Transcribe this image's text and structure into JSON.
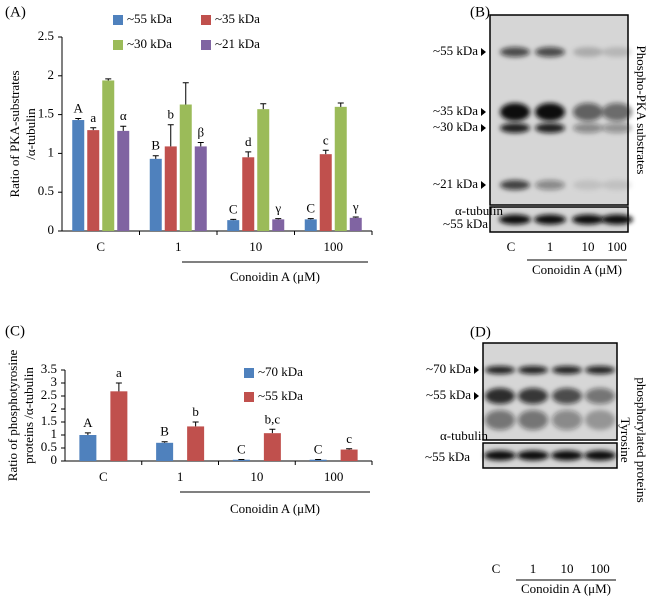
{
  "chart_data": [
    {
      "type": "bar",
      "panel_label": "(A)",
      "y_label": [
        "Ratio of PKA-substrates",
        "/α-tubulin"
      ],
      "x_label": "Conoidin A (μM)",
      "categories": [
        "C",
        "1",
        "10",
        "100"
      ],
      "ylim": [
        0,
        2.5
      ],
      "yticks": [
        0,
        0.5,
        1,
        1.5,
        2,
        2.5
      ],
      "series": [
        {
          "name": "~55 kDa",
          "color": "#4f81bd",
          "values": [
            1.43,
            0.93,
            0.14,
            0.15
          ],
          "errors": [
            0.02,
            0.04,
            0.01,
            0.01
          ],
          "letters": [
            "A",
            "B",
            "C",
            "C"
          ]
        },
        {
          "name": "~35 kDa",
          "color": "#c0504d",
          "values": [
            1.3,
            1.09,
            0.95,
            0.99
          ],
          "errors": [
            0.03,
            0.28,
            0.07,
            0.05
          ],
          "letters": [
            "a",
            "b",
            "d",
            "c"
          ]
        },
        {
          "name": "~30 kDa",
          "color": "#9bbb59",
          "values": [
            1.94,
            1.63,
            1.57,
            1.6
          ],
          "errors": [
            0.02,
            0.28,
            0.07,
            0.05
          ]
        },
        {
          "name": "~21 kDa",
          "color": "#8064a2",
          "values": [
            1.29,
            1.09,
            0.15,
            0.17
          ],
          "errors": [
            0.06,
            0.05,
            0.01,
            0.01
          ],
          "letters": [
            "α",
            "β",
            "γ",
            "γ"
          ]
        }
      ]
    },
    {
      "type": "bar",
      "panel_label": "(C)",
      "y_label": [
        "Ratio of phosphotyrosine",
        "proteins /α-tubulin"
      ],
      "x_label": "Conoidin A (μM)",
      "categories": [
        "C",
        "1",
        "10",
        "100"
      ],
      "ylim": [
        0,
        3.5
      ],
      "yticks": [
        0,
        0.5,
        1,
        1.5,
        2,
        2.5,
        3,
        3.5
      ],
      "series": [
        {
          "name": "~70 kDa",
          "color": "#4f81bd",
          "values": [
            1.0,
            0.7,
            0.05,
            0.05
          ],
          "errors": [
            0.08,
            0.04,
            0.01,
            0.01
          ],
          "letters": [
            "A",
            "B",
            "C",
            "C"
          ]
        },
        {
          "name": "~55 kDa",
          "color": "#c0504d",
          "values": [
            2.68,
            1.33,
            1.07,
            0.44
          ],
          "errors": [
            0.32,
            0.17,
            0.15,
            0.03
          ],
          "letters": [
            "a",
            "b",
            "b,c",
            "c"
          ]
        }
      ]
    }
  ],
  "blots": [
    {
      "label": "(B)",
      "bands": [
        "~55 kDa",
        "~35 kDa",
        "~30 kDa",
        "~21 kDa"
      ],
      "side_label": [
        "Phospho-PKA substrates"
      ],
      "loading_label": "α-tubulin",
      "loading_band": "~55 kDa",
      "lanes": [
        "C",
        "1",
        "10",
        "100"
      ],
      "x_label": "Conoidin A (μM)"
    },
    {
      "label": "(D)",
      "bands": [
        "~70 kDa",
        "~55 kDa"
      ],
      "side_label": [
        "Tyrosine",
        "phosphorylated proteins"
      ],
      "loading_label": "α-tubulin",
      "loading_band": "~55 kDa",
      "lanes": [
        "C",
        "1",
        "10",
        "100"
      ],
      "x_label": "Conoidin A (μM)"
    }
  ]
}
